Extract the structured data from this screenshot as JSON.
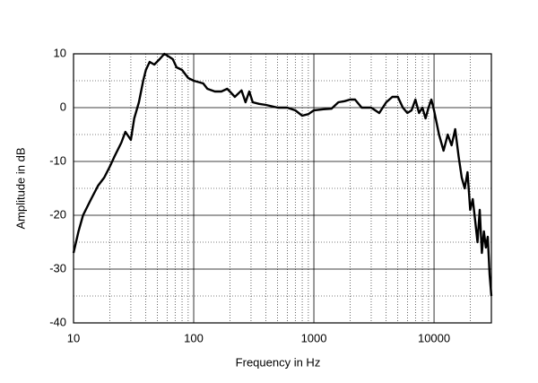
{
  "chart_data": {
    "type": "line",
    "xlabel": "Frequency  in  Hz",
    "ylabel": "Amplitude in dB",
    "xscale": "log",
    "xlim": [
      10,
      30000
    ],
    "ylim": [
      -40,
      10
    ],
    "xticks": [
      10,
      100,
      1000,
      10000
    ],
    "yticks": [
      10,
      0,
      -10,
      -20,
      -30,
      -40
    ],
    "grid": true,
    "color": "#000000",
    "x": [
      10,
      11,
      12,
      14,
      16,
      18,
      20,
      22,
      25,
      27,
      29,
      30,
      32,
      35,
      38,
      40,
      43,
      47,
      52,
      57,
      62,
      67,
      72,
      80,
      90,
      100,
      120,
      130,
      150,
      170,
      190,
      200,
      220,
      250,
      270,
      290,
      310,
      350,
      400,
      500,
      600,
      700,
      800,
      900,
      1000,
      1200,
      1400,
      1600,
      1800,
      2000,
      2200,
      2500,
      3000,
      3500,
      4000,
      4500,
      5000,
      5500,
      6000,
      6500,
      7000,
      7500,
      8000,
      8500,
      9000,
      9500,
      10000,
      11000,
      12000,
      13000,
      14000,
      15000,
      16000,
      17000,
      18000,
      19000,
      20000,
      21000,
      22000,
      23000,
      24000,
      25000,
      26000,
      27000,
      28000,
      29000,
      30000
    ],
    "values": [
      -27,
      -23,
      -20,
      -17,
      -14.5,
      -13,
      -11,
      -9,
      -6.5,
      -4.5,
      -5.5,
      -6,
      -2,
      1,
      5,
      7,
      8.5,
      8,
      9,
      10,
      9.5,
      9,
      7.5,
      7,
      5.5,
      5,
      4.5,
      3.5,
      3,
      3,
      3.5,
      3,
      2,
      3.2,
      1,
      3,
      1,
      0.7,
      0.5,
      0,
      0,
      -0.5,
      -1.5,
      -1.2,
      -0.5,
      -0.3,
      -0.2,
      1,
      1.2,
      1.5,
      1.5,
      0,
      0,
      -1,
      1,
      2,
      2,
      0,
      -1,
      -0.5,
      1.5,
      -1,
      0,
      -2,
      0,
      1.5,
      -0.5,
      -5,
      -8,
      -5,
      -7,
      -4,
      -9,
      -13,
      -15,
      -12,
      -19,
      -17,
      -21,
      -25,
      -19,
      -27,
      -23,
      -26,
      -24,
      -31,
      -35
    ]
  }
}
